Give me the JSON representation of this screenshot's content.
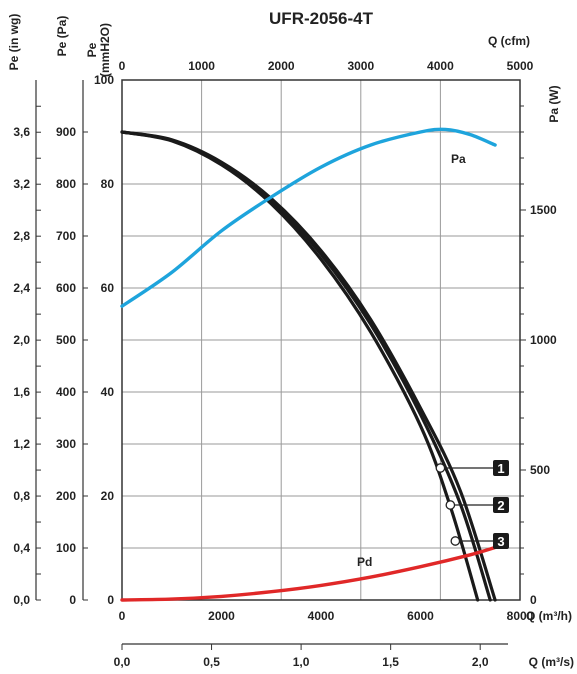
{
  "chart_data": {
    "type": "line",
    "title": "UFR-2056-4T",
    "axes": {
      "x_m3h": {
        "label": "Q (m³/h)",
        "range": [
          0,
          8000
        ],
        "ticks": [
          "0",
          "2000",
          "4000",
          "6000",
          "8000"
        ]
      },
      "x_cfm": {
        "label": "Q (cfm)",
        "range": [
          0,
          5000
        ],
        "ticks": [
          "0",
          "1000",
          "2000",
          "3000",
          "4000",
          "5000"
        ]
      },
      "x_m3s": {
        "label": "Q (m³/s)",
        "range": [
          0,
          2.2
        ],
        "ticks": [
          "0,0",
          "0,5",
          "1,0",
          "1,5",
          "2,0"
        ]
      },
      "y_mmH2O": {
        "label_lines": [
          "Pe",
          "(mmH2O)"
        ],
        "range": [
          0,
          100
        ],
        "ticks": [
          "0",
          "20",
          "40",
          "60",
          "80",
          "100"
        ]
      },
      "y_pa": {
        "label": "Pe (Pa)",
        "range": [
          0,
          1000
        ],
        "ticks": [
          "0",
          "100",
          "200",
          "300",
          "400",
          "500",
          "600",
          "700",
          "800",
          "900"
        ]
      },
      "y_inwg": {
        "label": "Pe (in wg)",
        "range": [
          0,
          4.0
        ],
        "ticks": [
          "0,0",
          "0,4",
          "0,8",
          "1,2",
          "1,6",
          "2,0",
          "2,4",
          "2,8",
          "3,2",
          "3,6"
        ]
      },
      "y_power": {
        "label": "Pa (W)",
        "range": [
          0,
          2000
        ],
        "ticks": [
          "0",
          "500",
          "1000",
          "1500"
        ]
      }
    },
    "grid": true,
    "series": [
      {
        "name": "1",
        "color": "#1a1a1a",
        "axis": "mmH2O",
        "x": [
          0,
          1000,
          2000,
          3000,
          4000,
          5000,
          6000,
          6800,
          7500
        ],
        "y": [
          90,
          88.5,
          84.2,
          77.2,
          67.2,
          53.9,
          36.9,
          21.0,
          0
        ]
      },
      {
        "name": "2",
        "color": "#1a1a1a",
        "axis": "mmH2O",
        "x": [
          0,
          1000,
          2000,
          3000,
          4000,
          5000,
          6000,
          6800,
          7400
        ],
        "y": [
          90,
          88.4,
          84.0,
          76.8,
          66.5,
          53.0,
          35.7,
          18.5,
          0
        ]
      },
      {
        "name": "3",
        "color": "#1a1a1a",
        "axis": "mmH2O",
        "x": [
          0,
          1000,
          2000,
          3000,
          4000,
          5000,
          6000,
          6600,
          7150
        ],
        "y": [
          90,
          88.3,
          83.7,
          76.2,
          65.5,
          51.5,
          33.5,
          18.0,
          0
        ]
      },
      {
        "name": "Pa",
        "color": "#1ea4dc",
        "axis": "power",
        "x": [
          0,
          1000,
          2000,
          3000,
          4000,
          5000,
          6000,
          6500,
          7000,
          7500
        ],
        "y": [
          1130,
          1260,
          1420,
          1550,
          1665,
          1750,
          1800,
          1810,
          1790,
          1750
        ]
      },
      {
        "name": "Pd",
        "color": "#e02828",
        "axis": "Pa",
        "x": [
          0,
          1000,
          2000,
          3000,
          4000,
          5000,
          6000,
          7000,
          7600
        ],
        "y": [
          0,
          1.8,
          7.0,
          16,
          28,
          44,
          64,
          87,
          104
        ]
      }
    ],
    "markers": [
      {
        "label": "1",
        "x": 6400,
        "y": 25
      },
      {
        "label": "2",
        "x": 6600,
        "y": 18.5
      },
      {
        "label": "3",
        "x": 6700,
        "y": 12
      }
    ]
  }
}
